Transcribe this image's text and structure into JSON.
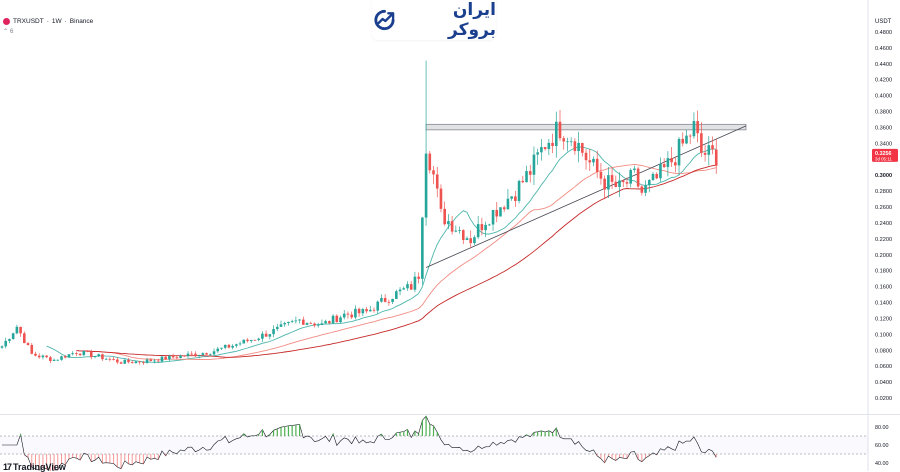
{
  "header": {
    "symbol": "TRXUSDT",
    "interval": "1W",
    "exchange": "Binance",
    "separator": "·",
    "sub_arrow": "⌃",
    "sub_count": "6"
  },
  "brand": {
    "logo_text": "ایران بروکر",
    "color": "#1b3f8f"
  },
  "watermark": {
    "mark": "17",
    "text": "TradingView"
  },
  "axis": {
    "currency": "USDT",
    "price_badge_value": "0.3256",
    "price_badge_countdown": "3d 05:11",
    "price_badge_color": "#f23645"
  },
  "chart_data": [
    {
      "type": "candlestick",
      "title": "",
      "ylim": [
        0.0,
        0.48
      ],
      "y_ticks": [
        0.48,
        0.46,
        0.44,
        0.42,
        0.4,
        0.38,
        0.36,
        0.34,
        0.32,
        0.3,
        0.28,
        0.26,
        0.24,
        0.22,
        0.2,
        0.18,
        0.16,
        0.14,
        0.12,
        0.1,
        0.08,
        0.06,
        0.04,
        0.02
      ],
      "y_tick_labels": [
        "0.4800",
        "0.4600",
        "0.4400",
        "0.4200",
        "0.4000",
        "0.3800",
        "0.3600",
        "0.3400",
        "0.3200",
        "0.3000",
        "0.2800",
        "0.2600",
        "0.2400",
        "0.2200",
        "0.2000",
        "0.1800",
        "0.1600",
        "0.1400",
        "0.1200",
        "0.1000",
        "0.0800",
        "0.0600",
        "0.0400",
        "0.0200"
      ],
      "bold_tick": "0.3000",
      "colors": {
        "up": "#26a69a",
        "down": "#ef5350",
        "ma_fast": "#4db6ac",
        "ma_mid": "#f28b82",
        "ma_slow": "#c62828",
        "trend": "#434651"
      },
      "close_anchors": [
        [
          0,
          0.085
        ],
        [
          4,
          0.11
        ],
        [
          8,
          0.075
        ],
        [
          14,
          0.068
        ],
        [
          20,
          0.078
        ],
        [
          26,
          0.072
        ],
        [
          32,
          0.065
        ],
        [
          38,
          0.066
        ],
        [
          44,
          0.07
        ],
        [
          50,
          0.074
        ],
        [
          56,
          0.078
        ],
        [
          62,
          0.086
        ],
        [
          68,
          0.095
        ],
        [
          74,
          0.106
        ],
        [
          80,
          0.118
        ],
        [
          86,
          0.112
        ],
        [
          92,
          0.125
        ],
        [
          98,
          0.128
        ],
        [
          104,
          0.147
        ],
        [
          110,
          0.16
        ],
        [
          112,
          0.175
        ],
        [
          114,
          0.34
        ],
        [
          116,
          0.3
        ],
        [
          118,
          0.25
        ],
        [
          122,
          0.235
        ],
        [
          126,
          0.22
        ],
        [
          130,
          0.245
        ],
        [
          134,
          0.262
        ],
        [
          138,
          0.28
        ],
        [
          142,
          0.305
        ],
        [
          146,
          0.34
        ],
        [
          150,
          0.36
        ],
        [
          154,
          0.345
        ],
        [
          158,
          0.315
        ],
        [
          162,
          0.292
        ],
        [
          166,
          0.283
        ],
        [
          170,
          0.298
        ],
        [
          172,
          0.278
        ],
        [
          176,
          0.295
        ],
        [
          180,
          0.318
        ],
        [
          184,
          0.345
        ],
        [
          186,
          0.36
        ],
        [
          188,
          0.328
        ],
        [
          192,
          0.325
        ]
      ],
      "candle_count": 193,
      "spike_high": {
        "x": 114,
        "value": 0.444
      },
      "resistance_zone": {
        "x_from": 114,
        "x_to": 200,
        "y_low": 0.357,
        "y_high": 0.364
      },
      "trendline": {
        "from": [
          114,
          0.184
        ],
        "to": [
          200,
          0.362
        ]
      }
    },
    {
      "type": "line",
      "title": "",
      "ylim": [
        30,
        100
      ],
      "y_ticks": [
        80,
        60,
        40
      ],
      "y_tick_labels": [
        "80.00",
        "60.00",
        "40.00"
      ],
      "overbought": 70,
      "oversold": 50,
      "colors": {
        "line": "#131722",
        "over": "#4caf50",
        "under": "#ef5350",
        "band": "#787b86"
      }
    }
  ]
}
